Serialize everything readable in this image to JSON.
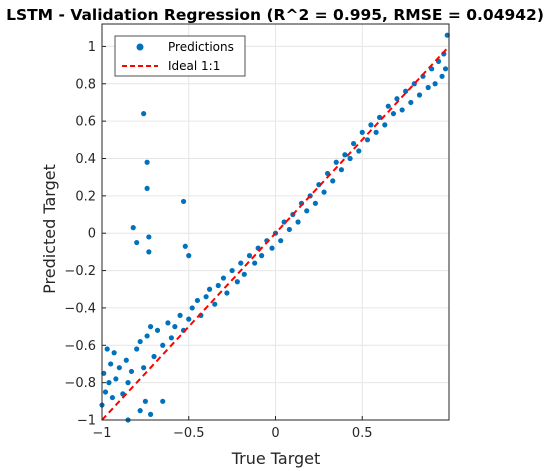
{
  "chart_data": {
    "type": "scatter",
    "title": "LSTM - Validation Regression (R^2 = 0.995, RMSE = 0.04942)",
    "xlabel": "True Target",
    "ylabel": "Predicted Target",
    "xlim": [
      -1,
      1
    ],
    "ylim": [
      -1,
      1.12
    ],
    "xticks": [
      -1,
      -0.5,
      0,
      0.5
    ],
    "xtick_labels": [
      "−1",
      "−0.5",
      "0",
      "0.5"
    ],
    "yticks": [
      -1,
      -0.8,
      -0.6,
      -0.4,
      -0.2,
      0,
      0.2,
      0.4,
      0.6,
      0.8,
      1
    ],
    "ytick_labels": [
      "−1",
      "−0.8",
      "−0.6",
      "−0.4",
      "−0.2",
      "0",
      "0.2",
      "0.4",
      "0.6",
      "0.8",
      "1"
    ],
    "grid": true,
    "legend_position": "top-left",
    "series": [
      {
        "name": "Predictions",
        "kind": "scatter",
        "color": "#0072BD",
        "points": [
          [
            -1.0,
            -0.92
          ],
          [
            -0.99,
            -0.75
          ],
          [
            -0.98,
            -0.85
          ],
          [
            -0.97,
            -0.62
          ],
          [
            -0.96,
            -0.8
          ],
          [
            -0.95,
            -0.7
          ],
          [
            -0.94,
            -0.88
          ],
          [
            -0.93,
            -0.64
          ],
          [
            -0.92,
            -0.78
          ],
          [
            -0.9,
            -0.72
          ],
          [
            -0.88,
            -0.86
          ],
          [
            -0.86,
            -0.68
          ],
          [
            -0.85,
            -0.8
          ],
          [
            -0.83,
            -0.74
          ],
          [
            -0.8,
            -0.62
          ],
          [
            -0.78,
            -0.58
          ],
          [
            -0.76,
            -0.72
          ],
          [
            -0.75,
            -0.9
          ],
          [
            -0.74,
            -0.55
          ],
          [
            -0.72,
            -0.5
          ],
          [
            -0.7,
            -0.66
          ],
          [
            -0.68,
            -0.52
          ],
          [
            -0.65,
            -0.6
          ],
          [
            -0.62,
            -0.48
          ],
          [
            -0.6,
            -0.56
          ],
          [
            -0.58,
            -0.5
          ],
          [
            -0.55,
            -0.44
          ],
          [
            -0.53,
            -0.52
          ],
          [
            -0.5,
            -0.46
          ],
          [
            -0.48,
            -0.4
          ],
          [
            -0.45,
            -0.36
          ],
          [
            -0.43,
            -0.44
          ],
          [
            -0.4,
            -0.34
          ],
          [
            -0.38,
            -0.3
          ],
          [
            -0.35,
            -0.38
          ],
          [
            -0.33,
            -0.28
          ],
          [
            -0.3,
            -0.24
          ],
          [
            -0.28,
            -0.32
          ],
          [
            -0.25,
            -0.2
          ],
          [
            -0.22,
            -0.26
          ],
          [
            -0.2,
            -0.16
          ],
          [
            -0.18,
            -0.22
          ],
          [
            -0.15,
            -0.12
          ],
          [
            -0.12,
            -0.16
          ],
          [
            -0.1,
            -0.08
          ],
          [
            -0.08,
            -0.12
          ],
          [
            -0.05,
            -0.04
          ],
          [
            -0.02,
            -0.08
          ],
          [
            0.0,
            0.0
          ],
          [
            0.03,
            -0.04
          ],
          [
            0.05,
            0.06
          ],
          [
            0.08,
            0.02
          ],
          [
            0.1,
            0.1
          ],
          [
            0.13,
            0.06
          ],
          [
            0.15,
            0.16
          ],
          [
            0.18,
            0.12
          ],
          [
            0.2,
            0.2
          ],
          [
            0.23,
            0.16
          ],
          [
            0.25,
            0.26
          ],
          [
            0.28,
            0.22
          ],
          [
            0.3,
            0.32
          ],
          [
            0.33,
            0.28
          ],
          [
            0.35,
            0.38
          ],
          [
            0.38,
            0.34
          ],
          [
            0.4,
            0.42
          ],
          [
            0.43,
            0.4
          ],
          [
            0.45,
            0.48
          ],
          [
            0.48,
            0.44
          ],
          [
            0.5,
            0.54
          ],
          [
            0.53,
            0.5
          ],
          [
            0.55,
            0.58
          ],
          [
            0.58,
            0.54
          ],
          [
            0.6,
            0.62
          ],
          [
            0.63,
            0.58
          ],
          [
            0.65,
            0.68
          ],
          [
            0.68,
            0.64
          ],
          [
            0.7,
            0.72
          ],
          [
            0.73,
            0.66
          ],
          [
            0.75,
            0.76
          ],
          [
            0.78,
            0.7
          ],
          [
            0.8,
            0.8
          ],
          [
            0.83,
            0.74
          ],
          [
            0.85,
            0.84
          ],
          [
            0.88,
            0.78
          ],
          [
            0.9,
            0.88
          ],
          [
            0.92,
            0.8
          ],
          [
            0.94,
            0.92
          ],
          [
            0.96,
            0.84
          ],
          [
            0.97,
            0.96
          ],
          [
            0.98,
            0.88
          ],
          [
            -0.82,
            0.03
          ],
          [
            -0.8,
            -0.05
          ],
          [
            -0.76,
            0.64
          ],
          [
            -0.74,
            0.38
          ],
          [
            -0.74,
            0.24
          ],
          [
            -0.73,
            -0.02
          ],
          [
            -0.73,
            -0.1
          ],
          [
            -0.53,
            0.17
          ],
          [
            -0.52,
            -0.07
          ],
          [
            -0.5,
            -0.12
          ],
          [
            -0.85,
            -1.0
          ],
          [
            -0.78,
            -0.95
          ],
          [
            -0.72,
            -0.97
          ],
          [
            -0.65,
            -0.9
          ],
          [
            0.99,
            1.06
          ]
        ]
      },
      {
        "name": "Ideal 1:1",
        "kind": "line",
        "color": "#FF0000",
        "points": [
          [
            -1,
            -1
          ],
          [
            1,
            1
          ]
        ]
      }
    ]
  }
}
